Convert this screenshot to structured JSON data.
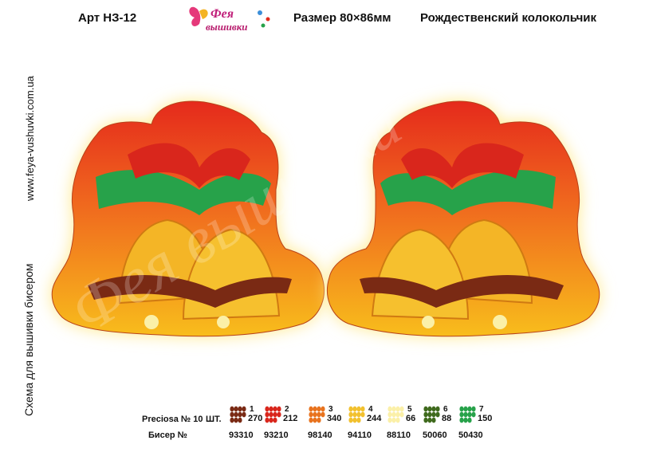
{
  "header": {
    "article": "Арт НЗ-12",
    "size": "Размер 80×86мм",
    "title": "Рождественский колокольчик"
  },
  "logo": {
    "line1": "Фея",
    "line2": "вышивки"
  },
  "side": {
    "website": "www.feya-vushuvki.com.ua",
    "scheme": "Схема для вышивки бисером"
  },
  "watermark": "Фея вышивки",
  "legend": {
    "brand": "Preciosa № 10",
    "pcs_label": "ШТ.",
    "bead_label": "Бисер №",
    "items": [
      {
        "num": "1",
        "count": "270",
        "code": "93310",
        "color": "#7a2a14"
      },
      {
        "num": "2",
        "count": "212",
        "code": "93210",
        "color": "#d9261c"
      },
      {
        "num": "3",
        "count": "340",
        "code": "98140",
        "color": "#e8731e"
      },
      {
        "num": "4",
        "count": "244",
        "code": "94110",
        "color": "#f2c12e"
      },
      {
        "num": "5",
        "count": "66",
        "code": "88110",
        "color": "#fbf0a8"
      },
      {
        "num": "6",
        "count": "88",
        "code": "50060",
        "color": "#3f6a1d"
      },
      {
        "num": "7",
        "count": "150",
        "code": "50430",
        "color": "#27a24a"
      }
    ]
  },
  "colors": {
    "bg_top": "#e32a1b",
    "bg_bottom": "#f7b81c",
    "glow": "#fff3a0"
  }
}
